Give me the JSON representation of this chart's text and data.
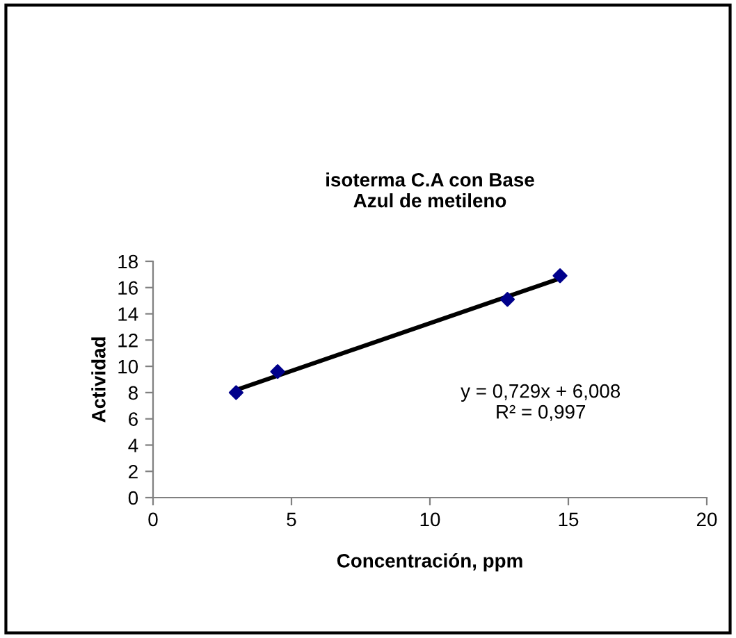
{
  "chart_data": {
    "type": "scatter",
    "title": "isoterma C.A con Base\nAzul de metileno",
    "xlabel": "Concentración, ppm",
    "ylabel": "Actividad",
    "series": [
      {
        "color": "#00008b",
        "marker": "diamond",
        "x": [
          3.0,
          4.5,
          12.8,
          14.7
        ],
        "values": [
          8.0,
          9.6,
          15.1,
          16.9
        ]
      },
      {
        "type": "line",
        "color": "#000000",
        "marker": "none",
        "x": [
          3.0,
          14.7
        ],
        "values": [
          8.2,
          16.7
        ]
      }
    ],
    "annotations": [
      "y = 0,729x + 6,008\nR² = 0,997"
    ],
    "xlim": [
      0,
      20
    ],
    "ylim": [
      0,
      18
    ],
    "xticks": [
      0,
      5,
      10,
      15,
      20
    ],
    "yticks": [
      0,
      2,
      4,
      6,
      8,
      10,
      12,
      14,
      16,
      18
    ],
    "grid": false,
    "legend": false
  }
}
